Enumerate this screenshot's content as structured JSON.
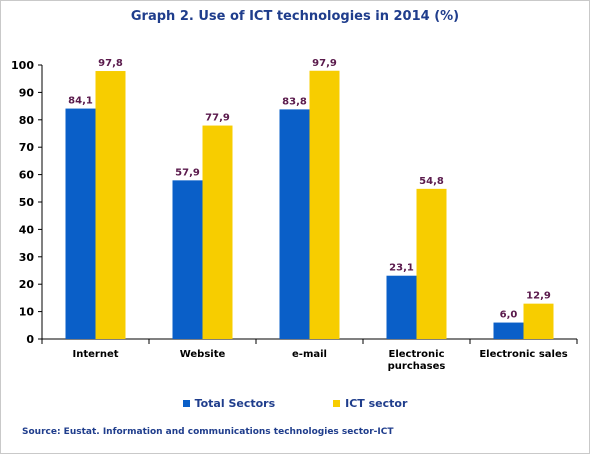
{
  "colors": {
    "total_sectors": "#0a5fc8",
    "ict_sector": "#f7cd00",
    "data_label": "#5a1a4c",
    "title": "#1f3d8c",
    "axis_text": "#000000"
  },
  "source": "Source: Eustat. Information and communications technologies sector-ICT",
  "chart_data": {
    "type": "bar",
    "title": "Graph 2. Use of ICT technologies in 2014 (%)",
    "xlabel": "",
    "ylabel": "",
    "categories": [
      [
        "Internet"
      ],
      [
        "Website"
      ],
      [
        "e-mail"
      ],
      [
        "Electronic",
        "purchases"
      ],
      [
        "Electronic sales"
      ]
    ],
    "series": [
      {
        "name": "Total Sectors",
        "values": [
          84.1,
          57.9,
          83.8,
          23.1,
          6.0
        ],
        "labels": [
          "84,1",
          "57,9",
          "83,8",
          "23,1",
          "6,0"
        ]
      },
      {
        "name": "ICT sector",
        "values": [
          97.8,
          77.9,
          97.9,
          54.8,
          12.9
        ],
        "labels": [
          "97,8",
          "77,9",
          "97,9",
          "54,8",
          "12,9"
        ]
      }
    ],
    "ylim": [
      0,
      100
    ],
    "yticks": [
      0,
      10,
      20,
      30,
      40,
      50,
      60,
      70,
      80,
      90,
      100
    ],
    "grid": false,
    "legend_position": "bottom"
  }
}
